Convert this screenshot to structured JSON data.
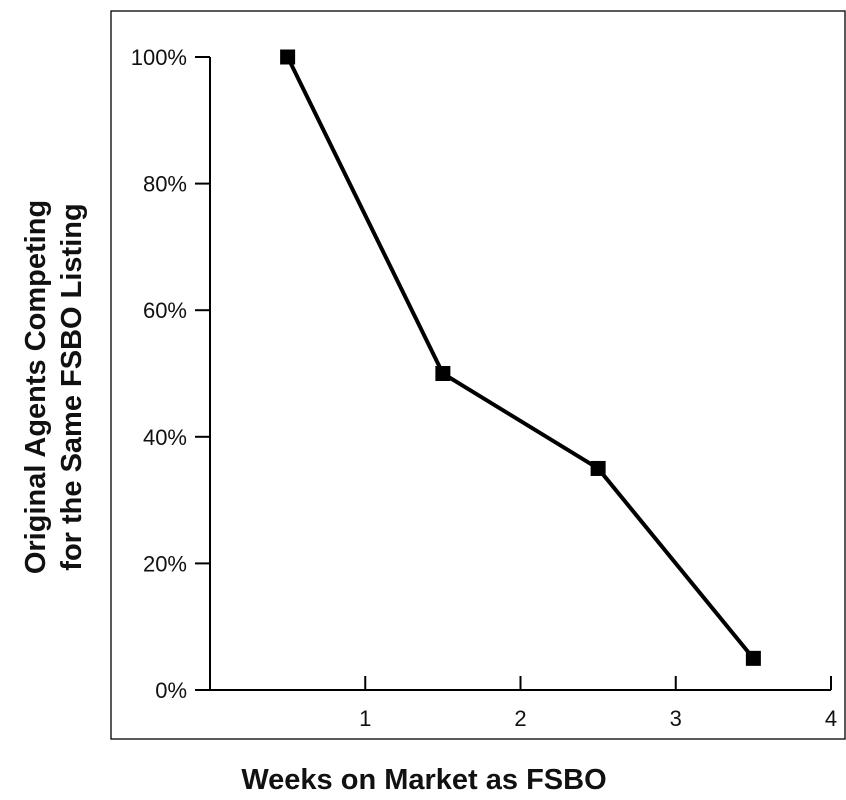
{
  "chart_data": {
    "type": "line",
    "title": "",
    "xlabel": "Weeks on Market as FSBO",
    "ylabel_lines": [
      "Original Agents Competing",
      "for the Same FSBO Listing"
    ],
    "x": [
      0.5,
      1.5,
      2.5,
      3.5
    ],
    "series": [
      {
        "values": [
          100,
          50,
          35,
          5
        ]
      }
    ],
    "xlim": [
      0,
      4
    ],
    "ylim": [
      0,
      100
    ],
    "x_ticks": [
      1,
      2,
      3,
      4
    ],
    "x_tick_labels": [
      "1",
      "2",
      "3",
      "4"
    ],
    "y_ticks": [
      0,
      20,
      40,
      60,
      80,
      100
    ],
    "y_tick_labels": [
      "0%",
      "20%",
      "40%",
      "60%",
      "80%",
      "100%"
    ],
    "grid": false,
    "marker": "square",
    "line_color": "#000000"
  }
}
